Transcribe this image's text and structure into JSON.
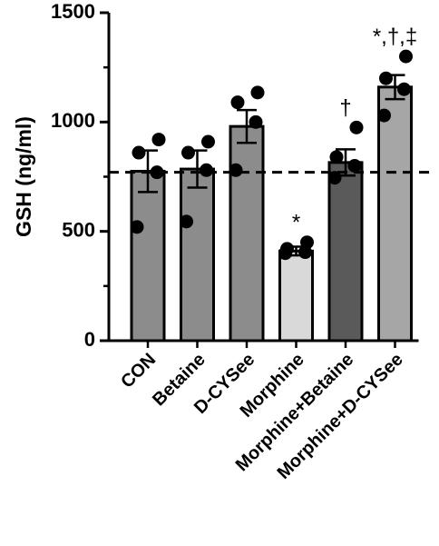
{
  "chart_data": {
    "type": "bar",
    "title": "",
    "xlabel": "",
    "ylabel": "GSH (ng/ml)",
    "ylim": [
      0,
      1500
    ],
    "yticks": [
      0,
      500,
      1000,
      1500
    ],
    "grid": false,
    "legend": "none",
    "categories": [
      "CON",
      "Betaine",
      "D-CYSee",
      "Morphine",
      "Morphine+Betaine",
      "Morphine+D-CYSee"
    ],
    "values": [
      775,
      785,
      980,
      410,
      815,
      1160
    ],
    "errors": [
      95,
      85,
      75,
      20,
      60,
      55
    ],
    "points": [
      [
        920,
        860,
        770,
        520
      ],
      [
        910,
        860,
        780,
        545
      ],
      [
        1135,
        1090,
        1000,
        780
      ],
      [
        450,
        420,
        405,
        400
      ],
      [
        975,
        840,
        800,
        745
      ],
      [
        1300,
        1200,
        1150,
        1030
      ]
    ],
    "annotations": [
      "",
      "",
      "",
      "*",
      "†",
      "*,†,‡"
    ],
    "reference_line": 770,
    "bar_colors": [
      "#8c8c8c",
      "#8c8c8c",
      "#8c8c8c",
      "#d9d9d9",
      "#5a5a5a",
      "#a6a6a6"
    ]
  }
}
